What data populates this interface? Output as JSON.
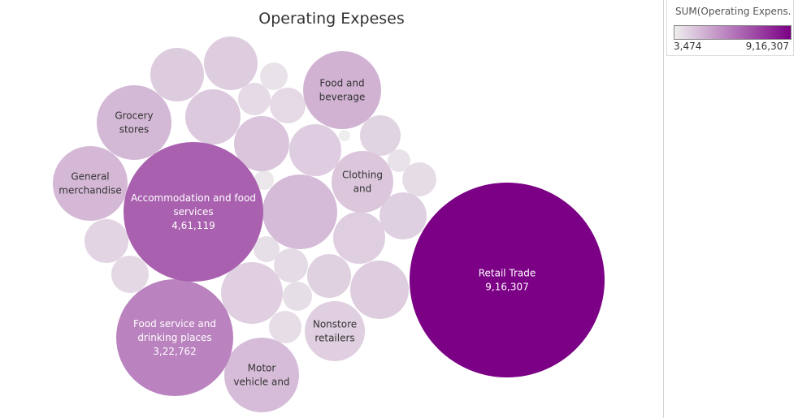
{
  "chart_data": {
    "type": "bubble",
    "title": "Operating Expeses",
    "measure": "SUM(Operating Expenses)",
    "color_min": "#eeeeee",
    "color_max": "#7b0085",
    "legend": {
      "title": "SUM(Operating Expens...",
      "min_label": "3,474",
      "max_label": "9,16,307",
      "placement": "top-right",
      "ramp_start_color": "#eeeeee",
      "ramp_end_color": "#7b0085"
    },
    "bubbles": [
      {
        "lines": [
          "Retail Trade"
        ],
        "value_label": "9,16,307",
        "value": 916307
      },
      {
        "lines": [
          "Accommodation and food",
          "services"
        ],
        "value_label": "4,61,119",
        "value": 461119
      },
      {
        "lines": [
          "Food service and",
          "drinking places"
        ],
        "value_label": "3,22,762",
        "value": 322762
      },
      {
        "lines": [
          "Food and",
          "beverage"
        ],
        "value_label": "",
        "value": 150000
      },
      {
        "lines": [
          "General",
          "merchandise"
        ],
        "value_label": "",
        "value": 130000
      },
      {
        "lines": [
          "Grocery",
          "stores"
        ],
        "value_label": "",
        "value": 128000
      },
      {
        "lines": [
          "Motor",
          "vehicle and"
        ],
        "value_label": "",
        "value": 118000
      },
      {
        "lines": [
          "Clothing",
          "and"
        ],
        "value_label": "",
        "value": 88000
      },
      {
        "lines": [
          "Nonstore",
          "retailers"
        ],
        "value_label": "",
        "value": 65000
      },
      {
        "lines": [],
        "value_label": "",
        "value": 120000
      },
      {
        "lines": [],
        "value_label": "",
        "value": 90000
      },
      {
        "lines": [],
        "value_label": "",
        "value": 80000
      },
      {
        "lines": [],
        "value_label": "",
        "value": 75000
      },
      {
        "lines": [],
        "value_label": "",
        "value": 72000
      },
      {
        "lines": [],
        "value_label": "",
        "value": 70000
      },
      {
        "lines": [],
        "value_label": "",
        "value": 68000
      },
      {
        "lines": [],
        "value_label": "",
        "value": 66000
      },
      {
        "lines": [],
        "value_label": "",
        "value": 65000
      },
      {
        "lines": [],
        "value_label": "",
        "value": 62000
      },
      {
        "lines": [],
        "value_label": "",
        "value": 58000
      },
      {
        "lines": [],
        "value_label": "",
        "value": 52000
      },
      {
        "lines": [],
        "value_label": "",
        "value": 50000
      },
      {
        "lines": [],
        "value_label": "",
        "value": 42000
      },
      {
        "lines": [],
        "value_label": "",
        "value": 40000
      },
      {
        "lines": [],
        "value_label": "",
        "value": 36000
      },
      {
        "lines": [],
        "value_label": "",
        "value": 34000
      },
      {
        "lines": [],
        "value_label": "",
        "value": 32000
      },
      {
        "lines": [],
        "value_label": "",
        "value": 30000
      },
      {
        "lines": [],
        "value_label": "",
        "value": 28000
      },
      {
        "lines": [],
        "value_label": "",
        "value": 26000
      },
      {
        "lines": [],
        "value_label": "",
        "value": 20000
      },
      {
        "lines": [],
        "value_label": "",
        "value": 18000
      },
      {
        "lines": [],
        "value_label": "",
        "value": 12000
      },
      {
        "lines": [],
        "value_label": "",
        "value": 10000
      },
      {
        "lines": [],
        "value_label": "",
        "value": 3474
      }
    ]
  }
}
